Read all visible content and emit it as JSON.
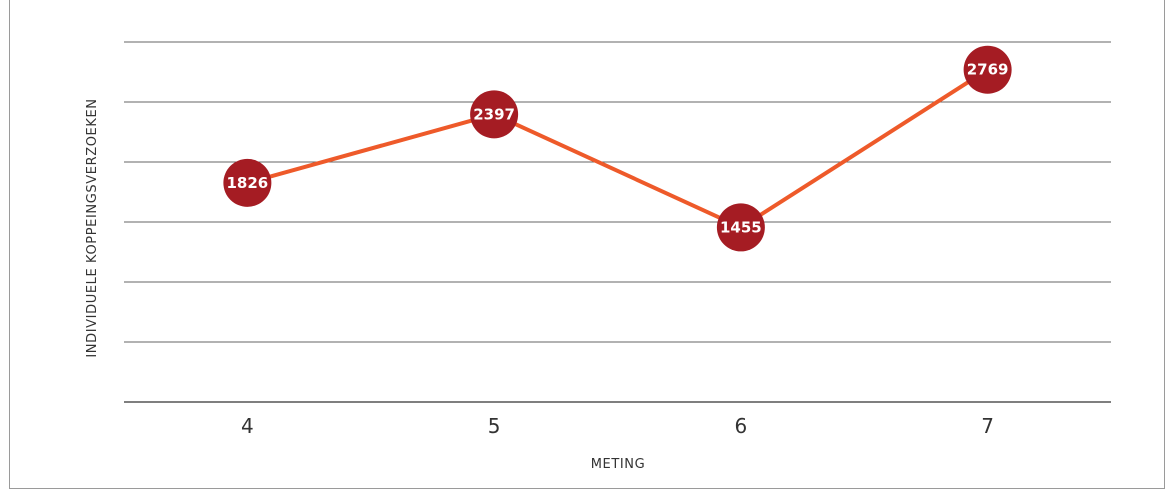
{
  "chart_data": {
    "type": "line",
    "categories": [
      "4",
      "5",
      "6",
      "7"
    ],
    "series": [
      {
        "values": [
          1826,
          2397,
          1455,
          2769
        ]
      }
    ],
    "xlabel": "METING",
    "ylabel": "INDIVIDUELE KOPPEINGSVERZOEKEN",
    "ylim": [
      0,
      3000
    ],
    "grid": true,
    "legend": "none",
    "colors": {
      "line": "#ee5a2a",
      "marker": "#a51c23",
      "marker_text": "#ffffff",
      "grid": "#333333"
    }
  }
}
